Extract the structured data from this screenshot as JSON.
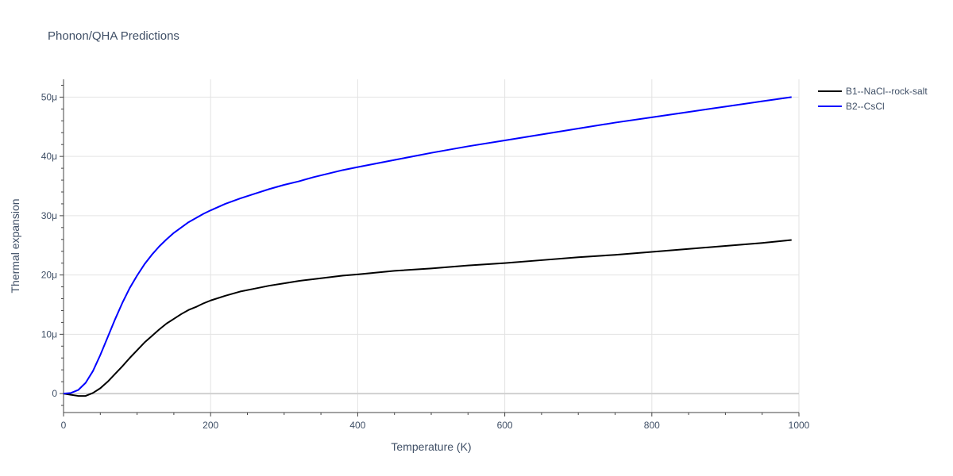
{
  "chart_data": {
    "type": "line",
    "title": "Phonon/QHA Predictions",
    "xlabel": "Temperature (K)",
    "ylabel": "Thermal expansion",
    "xlim": [
      0,
      1000
    ],
    "ylim": [
      -3.2e-06,
      5.3e-05
    ],
    "x_ticks": [
      {
        "value": 0,
        "label": "0"
      },
      {
        "value": 200,
        "label": "200"
      },
      {
        "value": 400,
        "label": "400"
      },
      {
        "value": 600,
        "label": "600"
      },
      {
        "value": 800,
        "label": "800"
      },
      {
        "value": 1000,
        "label": "1000"
      }
    ],
    "y_ticks": [
      {
        "value": 0,
        "label": "0"
      },
      {
        "value": 1e-05,
        "label": "10μ"
      },
      {
        "value": 2e-05,
        "label": "20μ"
      },
      {
        "value": 3e-05,
        "label": "30μ"
      },
      {
        "value": 4e-05,
        "label": "40μ"
      },
      {
        "value": 5e-05,
        "label": "50μ"
      }
    ],
    "grid": true,
    "legend_position": "top-right",
    "series": [
      {
        "name": "B1--NaCl--rock-salt",
        "color": "#000000",
        "x": [
          0,
          10,
          20,
          30,
          40,
          50,
          60,
          70,
          80,
          90,
          100,
          110,
          120,
          130,
          140,
          150,
          160,
          170,
          180,
          190,
          200,
          220,
          240,
          260,
          280,
          300,
          320,
          340,
          360,
          380,
          400,
          450,
          500,
          550,
          600,
          650,
          700,
          750,
          800,
          850,
          900,
          950,
          990
        ],
        "y": [
          0,
          -2e-07,
          -4e-07,
          -4e-07,
          1e-07,
          9e-07,
          2e-06,
          3.3e-06,
          4.6e-06,
          6e-06,
          7.3e-06,
          8.6e-06,
          9.7e-06,
          1.08e-05,
          1.18e-05,
          1.26e-05,
          1.34e-05,
          1.41e-05,
          1.46e-05,
          1.52e-05,
          1.57e-05,
          1.65e-05,
          1.72e-05,
          1.77e-05,
          1.82e-05,
          1.86e-05,
          1.9e-05,
          1.93e-05,
          1.96e-05,
          1.99e-05,
          2.01e-05,
          2.07e-05,
          2.11e-05,
          2.16e-05,
          2.2e-05,
          2.25e-05,
          2.3e-05,
          2.34e-05,
          2.39e-05,
          2.44e-05,
          2.49e-05,
          2.54e-05,
          2.59e-05
        ]
      },
      {
        "name": "B2--CsCl",
        "color": "#0000ff",
        "x": [
          0,
          10,
          20,
          30,
          40,
          50,
          60,
          70,
          80,
          90,
          100,
          110,
          120,
          130,
          140,
          150,
          160,
          170,
          180,
          190,
          200,
          220,
          240,
          260,
          280,
          300,
          320,
          340,
          360,
          380,
          400,
          450,
          500,
          550,
          600,
          650,
          700,
          750,
          800,
          850,
          900,
          950,
          990
        ],
        "y": [
          0,
          1e-07,
          6e-07,
          1.8e-06,
          3.8e-06,
          6.5e-06,
          9.5e-06,
          1.25e-05,
          1.53e-05,
          1.78e-05,
          1.99e-05,
          2.18e-05,
          2.34e-05,
          2.48e-05,
          2.6e-05,
          2.71e-05,
          2.8e-05,
          2.89e-05,
          2.96e-05,
          3.03e-05,
          3.09e-05,
          3.2e-05,
          3.29e-05,
          3.37e-05,
          3.45e-05,
          3.52e-05,
          3.58e-05,
          3.65e-05,
          3.71e-05,
          3.77e-05,
          3.82e-05,
          3.94e-05,
          4.06e-05,
          4.17e-05,
          4.27e-05,
          4.37e-05,
          4.47e-05,
          4.57e-05,
          4.66e-05,
          4.75e-05,
          4.84e-05,
          4.93e-05,
          5e-05
        ]
      }
    ]
  }
}
